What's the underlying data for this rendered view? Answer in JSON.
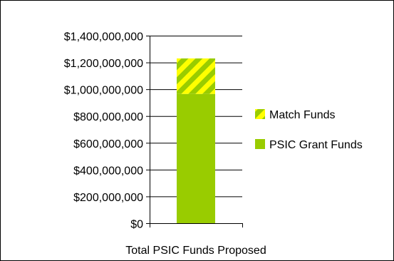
{
  "chart_data": {
    "type": "bar",
    "stacked": true,
    "categories": [
      "Total PSIC Funds Proposed"
    ],
    "series": [
      {
        "name": "PSIC Grant Funds",
        "values": [
          965000000
        ],
        "color": "#99cc00",
        "pattern": "solid"
      },
      {
        "name": "Match Funds",
        "values": [
          265000000
        ],
        "color": "#ffff00",
        "pattern": "diagonal-stripes",
        "stripe_color": "#99cc00"
      }
    ],
    "ylim": [
      0,
      1400000000
    ],
    "yticks": [
      0,
      200000000,
      400000000,
      600000000,
      800000000,
      1000000000,
      1200000000,
      1400000000
    ],
    "ytick_labels": [
      "$0",
      "$200,000,000",
      "$400,000,000",
      "$600,000,000",
      "$800,000,000",
      "$1,000,000,000",
      "$1,200,000,000",
      "$1,400,000,000"
    ],
    "grid": true,
    "legend_placement": "right",
    "legend": [
      "Match Funds",
      "PSIC Grant Funds"
    ]
  }
}
